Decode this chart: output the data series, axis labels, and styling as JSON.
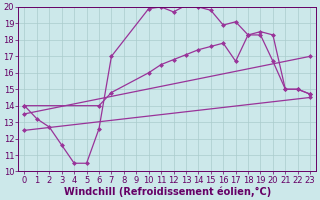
{
  "xlabel": "Windchill (Refroidissement éolien,°C)",
  "bg_color": "#cce8ea",
  "grid_color": "#aacccc",
  "line_color": "#993399",
  "xlim": [
    -0.5,
    23.5
  ],
  "ylim": [
    10,
    20
  ],
  "yticks": [
    10,
    11,
    12,
    13,
    14,
    15,
    16,
    17,
    18,
    19,
    20
  ],
  "xticks": [
    0,
    1,
    2,
    3,
    4,
    5,
    6,
    7,
    8,
    9,
    10,
    11,
    12,
    13,
    14,
    15,
    16,
    17,
    18,
    19,
    20,
    21,
    22,
    23
  ],
  "series": [
    {
      "x": [
        0,
        1,
        2,
        3,
        4,
        5,
        6,
        7,
        10,
        11,
        12,
        13,
        14,
        15,
        16,
        17,
        18,
        19,
        20,
        21,
        22,
        23
      ],
      "y": [
        14.0,
        13.2,
        12.7,
        11.6,
        10.5,
        10.5,
        12.6,
        17.0,
        19.9,
        20.0,
        19.7,
        20.1,
        20.0,
        19.8,
        18.9,
        19.1,
        18.3,
        18.5,
        18.3,
        15.0,
        15.0,
        14.7
      ]
    },
    {
      "x": [
        0,
        6,
        7,
        10,
        11,
        12,
        13,
        14,
        15,
        16,
        17,
        18,
        19,
        20,
        21,
        22,
        23
      ],
      "y": [
        14.0,
        14.0,
        14.8,
        16.0,
        16.5,
        16.8,
        17.1,
        17.4,
        17.6,
        17.8,
        16.7,
        18.3,
        18.3,
        16.7,
        15.0,
        15.0,
        14.7
      ]
    },
    {
      "x": [
        0,
        23
      ],
      "y": [
        13.5,
        17.0
      ]
    },
    {
      "x": [
        0,
        23
      ],
      "y": [
        12.5,
        14.5
      ]
    }
  ],
  "fontsize_xlabel": 7.0,
  "tick_fontsize": 6.0,
  "markersize": 2.5,
  "linewidth": 0.9
}
